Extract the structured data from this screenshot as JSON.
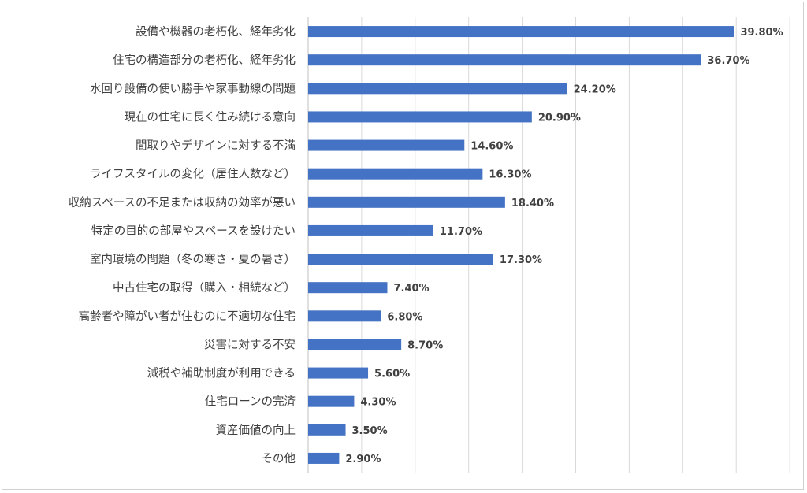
{
  "chart_data": {
    "type": "bar",
    "orientation": "horizontal",
    "title": "",
    "xlabel": "",
    "ylabel": "",
    "categories": [
      "設備や機器の老朽化、経年劣化",
      "住宅の構造部分の老朽化、経年劣化",
      "水回り設備の使い勝手や家事動線の問題",
      "現在の住宅に長く住み続ける意向",
      "間取りやデザインに対する不満",
      "ライフスタイルの変化（居住人数など）",
      "収納スペースの不足または収納の効率が悪い",
      "特定の目的の部屋やスペースを設けたい",
      "室内環境の問題（冬の寒さ・夏の暑さ）",
      "中古住宅の取得（購入・相続など）",
      "高齢者や障がい者が住むのに不適切な住宅",
      "災害に対する不安",
      "減税や補助制度が利用できる",
      "住宅ローンの完済",
      "資産価値の向上",
      "その他"
    ],
    "values": [
      39.8,
      36.7,
      24.2,
      20.9,
      14.6,
      16.3,
      18.4,
      11.7,
      17.3,
      7.4,
      6.8,
      8.7,
      5.6,
      4.3,
      3.5,
      2.9
    ],
    "value_labels": [
      "39.80%",
      "36.70%",
      "24.20%",
      "20.90%",
      "14.60%",
      "16.30%",
      "18.40%",
      "11.70%",
      "17.30%",
      "7.40%",
      "6.80%",
      "8.70%",
      "5.60%",
      "4.30%",
      "3.50%",
      "2.90%"
    ],
    "xlim": [
      0,
      45
    ],
    "grid": true,
    "bar_color": "#4472C4",
    "legend": "none"
  }
}
